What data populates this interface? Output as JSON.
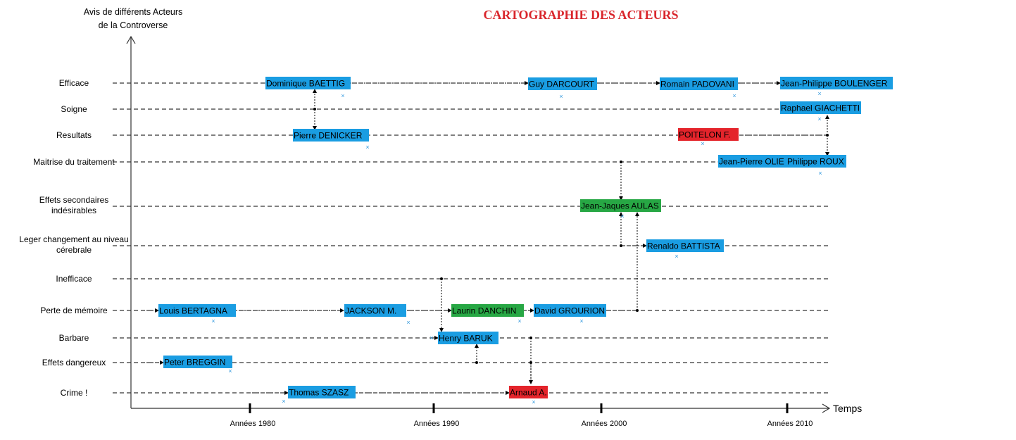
{
  "title": "CARTOGRAPHIE DES ACTEURS",
  "y_axis_label": [
    "Avis de différents Acteurs",
    "de la Controverse"
  ],
  "x_axis_label": "Temps",
  "colors": {
    "blue": "#1a9de2",
    "green": "#27a744",
    "red": "#e4242b",
    "title": "#d9262c",
    "marker": "#3399dd",
    "line": "#000000"
  },
  "categories": [
    [
      "Efficace"
    ],
    [
      "Soigne"
    ],
    [
      "Resultats"
    ],
    [
      "Maitrise du traitement"
    ],
    [
      "Effets secondaires",
      "indésirables"
    ],
    [
      "Leger changement au niveau",
      "cérebrale"
    ],
    [
      "Inefficace"
    ],
    [
      "Perte de mémoire"
    ],
    [
      "Barbare"
    ],
    [
      "Effets dangereux"
    ],
    [
      "Crime !"
    ]
  ],
  "decades": [
    "Années 1980",
    "Années 1990",
    "Années 2000",
    "Années 2010"
  ],
  "actors": [
    {
      "name": "Dominique BAETTIG",
      "color": "blue"
    },
    {
      "name": "Guy DARCOURT",
      "color": "blue"
    },
    {
      "name": "Romain PADOVANI",
      "color": "blue"
    },
    {
      "name": "Jean-Philippe BOULENGER",
      "color": "blue"
    },
    {
      "name": "Raphael GIACHETTI",
      "color": "blue"
    },
    {
      "name": "Pierre DENICKER",
      "color": "blue"
    },
    {
      "name": "POITELON F.",
      "color": "red"
    },
    {
      "name": "Jean-Pierre OLIE",
      "color": "blue"
    },
    {
      "name": "Philippe ROUX",
      "color": "blue"
    },
    {
      "name": "Jean-Jaques AULAS",
      "color": "green"
    },
    {
      "name": "Renaldo BATTISTA",
      "color": "blue"
    },
    {
      "name": "Louis BERTAGNA",
      "color": "blue"
    },
    {
      "name": "JACKSON M.",
      "color": "blue"
    },
    {
      "name": "Laurin DANCHIN",
      "color": "green"
    },
    {
      "name": "David GROURION",
      "color": "blue"
    },
    {
      "name": "Henry BARUK",
      "color": "blue"
    },
    {
      "name": "Peter BREGGIN",
      "color": "blue"
    },
    {
      "name": "Thomas SZASZ",
      "color": "blue"
    },
    {
      "name": "Arnaud A.",
      "color": "red"
    }
  ]
}
